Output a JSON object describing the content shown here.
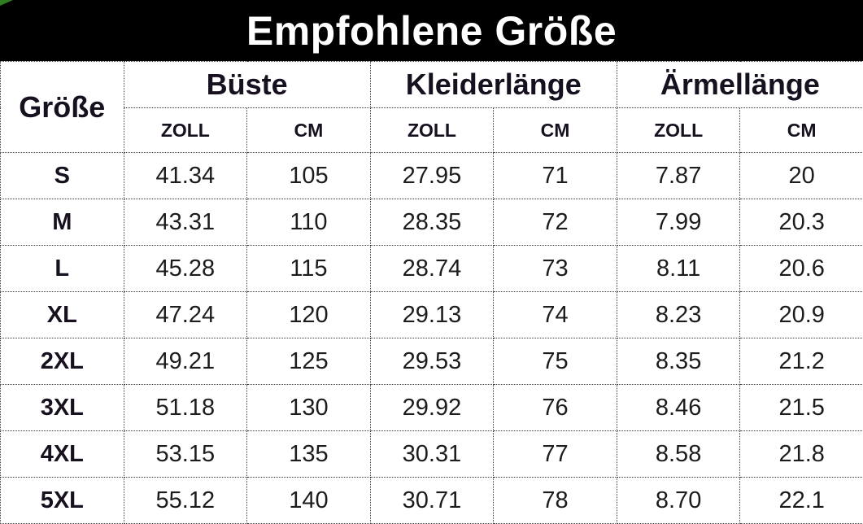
{
  "colors": {
    "title-bg": "#000000",
    "title-text": "#ffffff",
    "header-text": "#17111f",
    "body-text": "#1c1c1c",
    "border": "#3b3b3b",
    "corner-marker": "#2e7e22"
  },
  "chart_data": {
    "type": "table",
    "title": "Empfohlene Größe",
    "corner_header": "Größe",
    "group_headers": [
      "Büste",
      "Kleiderlänge",
      "Ärmellänge"
    ],
    "unit_headers": [
      "ZOLL",
      "CM",
      "ZOLL",
      "CM",
      "ZOLL",
      "CM"
    ],
    "columns": [
      "Größe",
      "Büste ZOLL",
      "Büste CM",
      "Kleiderlänge ZOLL",
      "Kleiderlänge CM",
      "Ärmellänge ZOLL",
      "Ärmellänge CM"
    ],
    "rows": [
      {
        "size": "S",
        "values": [
          "41.34",
          "105",
          "27.95",
          "71",
          "7.87",
          "20"
        ]
      },
      {
        "size": "M",
        "values": [
          "43.31",
          "110",
          "28.35",
          "72",
          "7.99",
          "20.3"
        ]
      },
      {
        "size": "L",
        "values": [
          "45.28",
          "115",
          "28.74",
          "73",
          "8.11",
          "20.6"
        ]
      },
      {
        "size": "XL",
        "values": [
          "47.24",
          "120",
          "29.13",
          "74",
          "8.23",
          "20.9"
        ]
      },
      {
        "size": "2XL",
        "values": [
          "49.21",
          "125",
          "29.53",
          "75",
          "8.35",
          "21.2"
        ]
      },
      {
        "size": "3XL",
        "values": [
          "51.18",
          "130",
          "29.92",
          "76",
          "8.46",
          "21.5"
        ]
      },
      {
        "size": "4XL",
        "values": [
          "53.15",
          "135",
          "30.31",
          "77",
          "8.58",
          "21.8"
        ]
      },
      {
        "size": "5XL",
        "values": [
          "55.12",
          "140",
          "30.71",
          "78",
          "8.70",
          "22.1"
        ]
      }
    ]
  }
}
